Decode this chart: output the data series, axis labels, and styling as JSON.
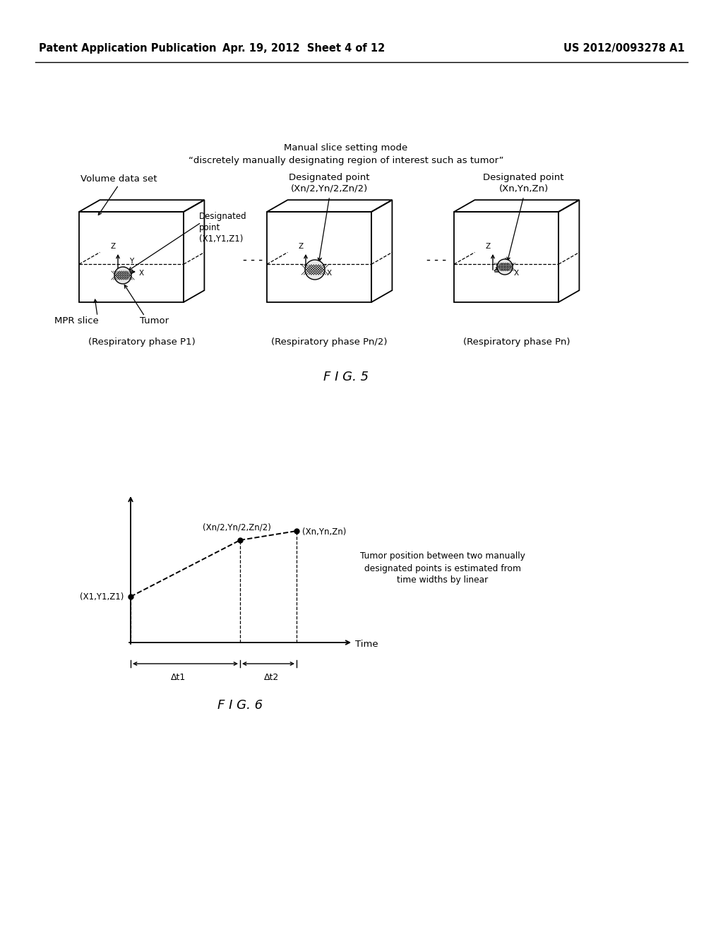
{
  "bg_color": "#ffffff",
  "header_left": "Patent Application Publication",
  "header_mid": "Apr. 19, 2012  Sheet 4 of 12",
  "header_right": "US 2012/0093278 A1",
  "fig5_title_line1": "Manual slice setting mode",
  "fig5_title_line2": "“discretely manually designating region of interest such as tumor”",
  "fig5_label": "F I G. 5",
  "fig6_label": "F I G. 6",
  "cube1_label_top": "Volume data set",
  "cube1_label_bottom": "(Respiratory phase P1)",
  "cube1_mpr": "MPR slice",
  "cube1_tumor": "Tumor",
  "cube2_label_top1": "Designated point",
  "cube2_label_top2": "(Xn/2,Yn/2,Zn/2)",
  "cube2_label_bottom": "(Respiratory phase Pn/2)",
  "cube3_label_top1": "Designated point",
  "cube3_label_top2": "(Xn,Yn,Zn)",
  "cube3_label_bottom": "(Respiratory phase Pn)",
  "graph_pt1_label": "(X1,Y1,Z1)",
  "graph_pt2_label": "(Xn/2,Yn/2,Zn/2)",
  "graph_pt3_label": "(Xn,Yn,Zn)",
  "graph_xlabel": "Time",
  "graph_dt1": "Δt1",
  "graph_dt2": "Δt2",
  "graph_annotation": "Tumor position between two manually\ndesignated points is estimated from\ntime widths by linear"
}
